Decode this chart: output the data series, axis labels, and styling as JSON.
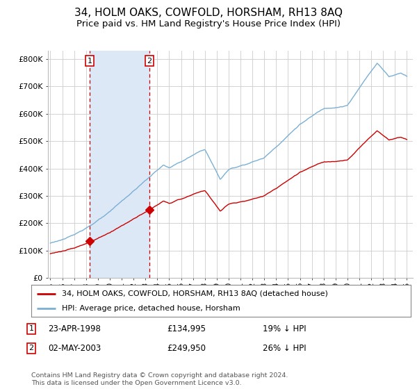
{
  "title": "34, HOLM OAKS, COWFOLD, HORSHAM, RH13 8AQ",
  "subtitle": "Price paid vs. HM Land Registry's House Price Index (HPI)",
  "title_fontsize": 11,
  "subtitle_fontsize": 9.5,
  "ylabel_ticks": [
    "£0",
    "£100K",
    "£200K",
    "£300K",
    "£400K",
    "£500K",
    "£600K",
    "£700K",
    "£800K"
  ],
  "ytick_vals": [
    0,
    100000,
    200000,
    300000,
    400000,
    500000,
    600000,
    700000,
    800000
  ],
  "ylim": [
    0,
    830000
  ],
  "xlim_start": 1994.8,
  "xlim_end": 2025.5,
  "sale1_x": 1998.31,
  "sale1_y": 134995,
  "sale2_x": 2003.34,
  "sale2_y": 249950,
  "sale1_label": "1",
  "sale2_label": "2",
  "sale1_date": "23-APR-1998",
  "sale1_price": "£134,995",
  "sale1_hpi": "19% ↓ HPI",
  "sale2_date": "02-MAY-2003",
  "sale2_price": "£249,950",
  "sale2_hpi": "26% ↓ HPI",
  "legend_line1": "34, HOLM OAKS, COWFOLD, HORSHAM, RH13 8AQ (detached house)",
  "legend_line2": "HPI: Average price, detached house, Horsham",
  "footer": "Contains HM Land Registry data © Crown copyright and database right 2024.\nThis data is licensed under the Open Government Licence v3.0.",
  "line_color_red": "#cc0000",
  "line_color_blue": "#7bafd4",
  "shade_color": "#dce8f5",
  "bg_color": "#ffffff",
  "grid_color": "#cccccc",
  "vline_color": "#cc0000",
  "box_color": "#cc0000"
}
